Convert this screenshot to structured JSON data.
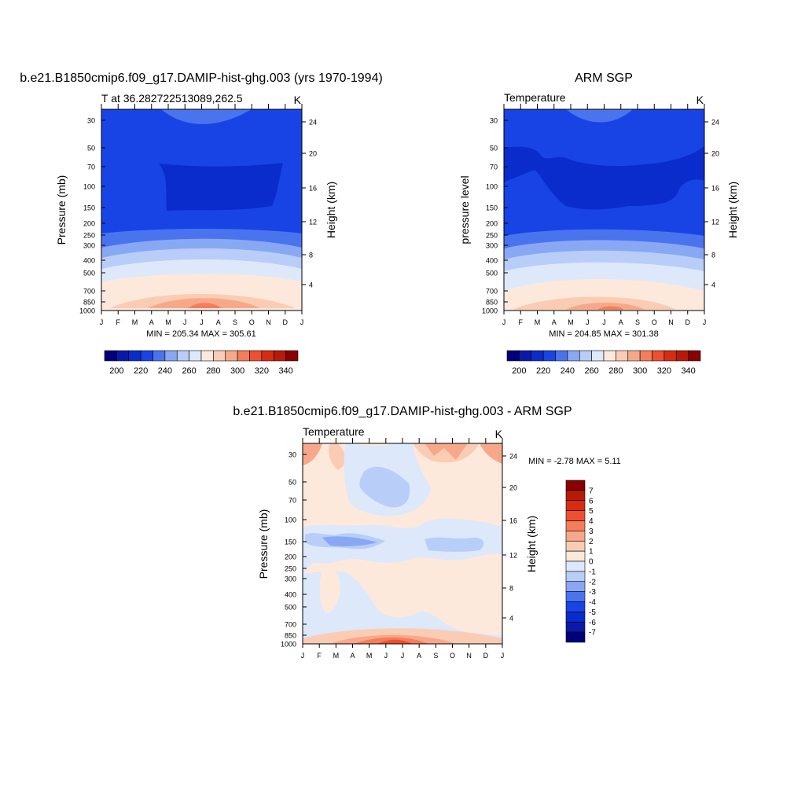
{
  "chart_data": [
    {
      "type": "heatmap",
      "title": "b.e21.B1850cmip6.f09_g17.DAMIP-hist-ghg.003 (yrs 1970-1994)",
      "left_string": "T at 36.282722513089,262.5",
      "right_string": "K",
      "ylabel": "Pressure (mb)",
      "ylabel_right": "Height (km)",
      "x_ticks": [
        "J",
        "F",
        "M",
        "A",
        "M",
        "J",
        "J",
        "A",
        "S",
        "O",
        "N",
        "D",
        "J"
      ],
      "pressure_ticks": [
        "30",
        "50",
        "70",
        "100",
        "150",
        "200",
        "250",
        "300",
        "400",
        "500",
        "700",
        "850",
        "1000"
      ],
      "height_ticks": [
        "4",
        "8",
        "12",
        "16",
        "20",
        "24"
      ],
      "stats": "MIN = 205.34  MAX = 305.61",
      "min": 205.34,
      "max": 305.61,
      "colorbar_labels": [
        "200",
        "220",
        "240",
        "260",
        "280",
        "300",
        "320",
        "340"
      ]
    },
    {
      "type": "heatmap",
      "title": "ARM SGP",
      "left_string": "Temperature",
      "right_string": "K",
      "ylabel": "pressure level",
      "ylabel_right": "Height (km)",
      "x_ticks": [
        "J",
        "F",
        "M",
        "A",
        "M",
        "J",
        "J",
        "A",
        "S",
        "O",
        "N",
        "D",
        "J"
      ],
      "pressure_ticks": [
        "30",
        "50",
        "70",
        "100",
        "150",
        "200",
        "250",
        "300",
        "400",
        "500",
        "700",
        "850",
        "1000"
      ],
      "height_ticks": [
        "4",
        "8",
        "12",
        "16",
        "20",
        "24"
      ],
      "stats": "MIN = 204.85  MAX = 301.38",
      "min": 204.85,
      "max": 301.38,
      "colorbar_labels": [
        "200",
        "220",
        "240",
        "260",
        "280",
        "300",
        "320",
        "340"
      ]
    },
    {
      "type": "heatmap",
      "title": "b.e21.B1850cmip6.f09_g17.DAMIP-hist-ghg.003 - ARM SGP",
      "left_string": "Temperature",
      "right_string": "K",
      "ylabel": "Pressure (mb)",
      "ylabel_right": "Height (km)",
      "x_ticks": [
        "J",
        "F",
        "M",
        "A",
        "M",
        "J",
        "J",
        "A",
        "S",
        "O",
        "N",
        "D",
        "J"
      ],
      "pressure_ticks": [
        "30",
        "50",
        "70",
        "100",
        "150",
        "200",
        "250",
        "300",
        "400",
        "500",
        "700",
        "850",
        "1000"
      ],
      "height_ticks": [
        "4",
        "8",
        "12",
        "16",
        "20",
        "24"
      ],
      "stats": "MIN =  -2.78 MAX =   5.11",
      "min": -2.78,
      "max": 5.11,
      "colorbar_labels": [
        "7",
        "6",
        "5",
        "4",
        "3",
        "2",
        "1",
        "0",
        "-1",
        "-2",
        "-3",
        "-4",
        "-5",
        "-6",
        "-7"
      ]
    }
  ],
  "palettes": {
    "absolute": [
      "#00007d",
      "#0a1aa8",
      "#0a2ccc",
      "#1844e6",
      "#4a74ee",
      "#88a8f4",
      "#b8cdf8",
      "#dde8fb",
      "#fde9dc",
      "#fbccb4",
      "#f8a88a",
      "#f47e5c",
      "#ec5030",
      "#d82c12",
      "#b81a08",
      "#8a0000"
    ],
    "difference": [
      "#8a0000",
      "#b81a08",
      "#d82c12",
      "#ec5030",
      "#f47e5c",
      "#f8a88a",
      "#fbccb4",
      "#fde9dc",
      "#dde8fb",
      "#b8cdf8",
      "#88a8f4",
      "#4a74ee",
      "#1844e6",
      "#0a2ccc",
      "#0a1aa8",
      "#00007d"
    ]
  }
}
